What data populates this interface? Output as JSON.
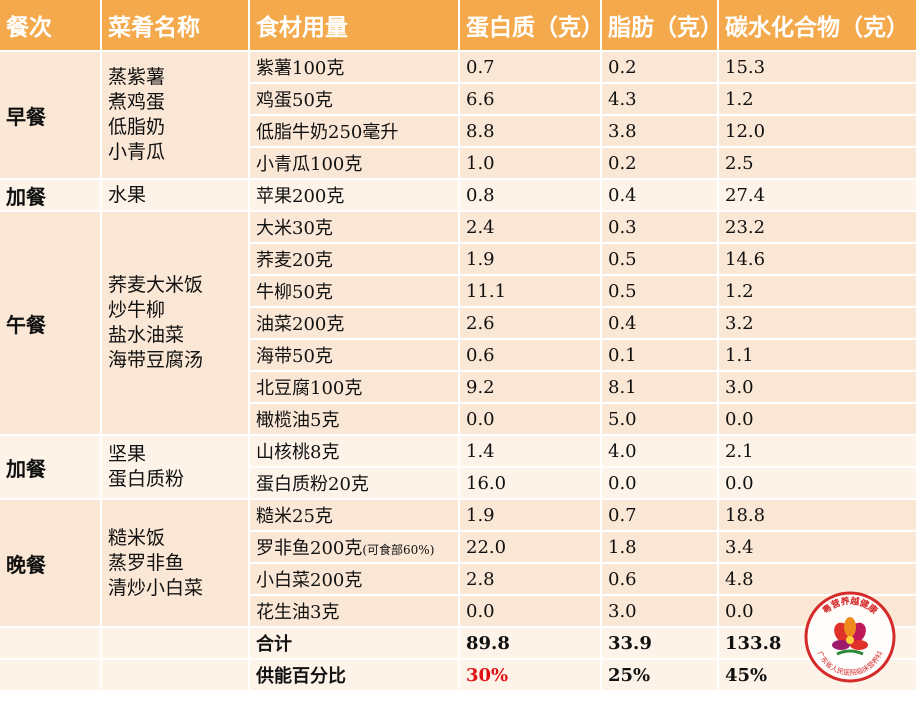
{
  "headers": [
    "餐次",
    "菜肴名称",
    "食材用量",
    "蛋白质（克）",
    "脂肪（克）",
    "碳水化合物（克）"
  ],
  "meals": [
    {
      "meal": "早餐",
      "dishes": [
        "蒸紫薯",
        "煮鸡蛋",
        "低脂奶",
        "小青瓜"
      ],
      "rows": [
        {
          "food": "紫薯100克",
          "note": "",
          "protein": "0.7",
          "fat": "0.2",
          "carb": "15.3"
        },
        {
          "food": "鸡蛋50克",
          "note": "",
          "protein": "6.6",
          "fat": "4.3",
          "carb": "1.2"
        },
        {
          "food": "低脂牛奶250毫升",
          "note": "",
          "protein": "8.8",
          "fat": "3.8",
          "carb": "12.0"
        },
        {
          "food": "小青瓜100克",
          "note": "",
          "protein": "1.0",
          "fat": "0.2",
          "carb": "2.5"
        }
      ]
    },
    {
      "meal": "加餐",
      "dishes": [
        "水果"
      ],
      "rows": [
        {
          "food": "苹果200克",
          "note": "",
          "protein": "0.8",
          "fat": "0.4",
          "carb": "27.4"
        }
      ]
    },
    {
      "meal": "午餐",
      "dishes": [
        "荞麦大米饭",
        "炒牛柳",
        "盐水油菜",
        "海带豆腐汤"
      ],
      "rows": [
        {
          "food": "大米30克",
          "note": "",
          "protein": "2.4",
          "fat": "0.3",
          "carb": "23.2"
        },
        {
          "food": "荞麦20克",
          "note": "",
          "protein": "1.9",
          "fat": "0.5",
          "carb": "14.6"
        },
        {
          "food": "牛柳50克",
          "note": "",
          "protein": "11.1",
          "fat": "0.5",
          "carb": "1.2"
        },
        {
          "food": "油菜200克",
          "note": "",
          "protein": "2.6",
          "fat": "0.4",
          "carb": "3.2"
        },
        {
          "food": "海带50克",
          "note": "",
          "protein": "0.6",
          "fat": "0.1",
          "carb": "1.1"
        },
        {
          "food": "北豆腐100克",
          "note": "",
          "protein": "9.2",
          "fat": "8.1",
          "carb": "3.0"
        },
        {
          "food": "橄榄油5克",
          "note": "",
          "protein": "0.0",
          "fat": "5.0",
          "carb": "0.0"
        }
      ]
    },
    {
      "meal": "加餐",
      "dishes": [
        "坚果",
        "蛋白质粉"
      ],
      "rows": [
        {
          "food": "山核桃8克",
          "note": "",
          "protein": "1.4",
          "fat": "4.0",
          "carb": "2.1"
        },
        {
          "food": "蛋白质粉20克",
          "note": "",
          "protein": "16.0",
          "fat": "0.0",
          "carb": "0.0"
        }
      ]
    },
    {
      "meal": "晚餐",
      "dishes": [
        "糙米饭",
        "蒸罗非鱼",
        "清炒小白菜"
      ],
      "rows": [
        {
          "food": "糙米25克",
          "note": "",
          "protein": "1.9",
          "fat": "0.7",
          "carb": "18.8"
        },
        {
          "food": "罗非鱼200克",
          "note": "(可食部60%)",
          "protein": "22.0",
          "fat": "1.8",
          "carb": "3.4"
        },
        {
          "food": "小白菜200克",
          "note": "",
          "protein": "2.8",
          "fat": "0.6",
          "carb": "4.8"
        },
        {
          "food": "花生油3克",
          "note": "",
          "protein": "0.0",
          "fat": "3.0",
          "carb": "0.0"
        }
      ]
    }
  ],
  "summary": [
    {
      "label": "合计",
      "protein": "89.8",
      "fat": "33.9",
      "carb": "133.8",
      "protein_color": "#111111"
    },
    {
      "label": "供能百分比",
      "protein": "30%",
      "fat": "25%",
      "carb": "45%",
      "protein_color": "#e01010"
    }
  ],
  "stamp": {
    "top_text": "粤营养越健康",
    "bottom_text": "广东省人民医院临床营养科",
    "ring_color": "#d42a2a"
  }
}
